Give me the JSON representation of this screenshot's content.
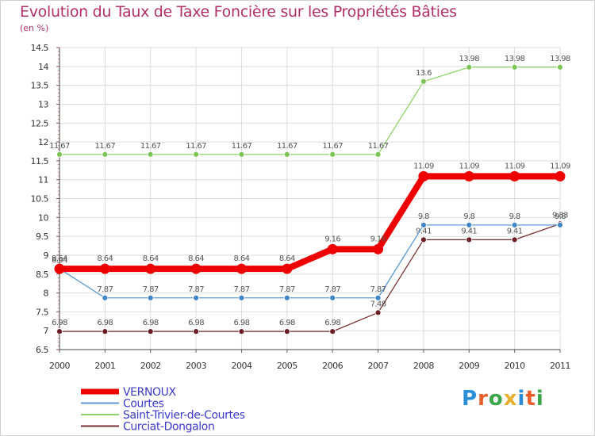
{
  "logo": {
    "text": "Proxiti",
    "colors": [
      "#2a8fd6",
      "#e85d2a",
      "#3aa648",
      "#e8b02a",
      "#2a8fd6",
      "#e85d2a",
      "#3aa648"
    ]
  },
  "chart_data": {
    "type": "line",
    "title": "Evolution du Taux de Taxe Foncière sur les Propriétés Bâties",
    "subtitle": "(en %)",
    "xlabel": "",
    "ylabel": "",
    "ylim": [
      6.5,
      14.5
    ],
    "yticks": [
      "6.5",
      "7",
      "7.5",
      "8",
      "8.5",
      "9",
      "9.5",
      "10",
      "10.5",
      "11",
      "11.5",
      "12",
      "12.5",
      "13",
      "13.5",
      "14",
      "14.5"
    ],
    "categories": [
      "2000",
      "2001",
      "2002",
      "2003",
      "2004",
      "2005",
      "2006",
      "2007",
      "2008",
      "2009",
      "2010",
      "2011"
    ],
    "grid": true,
    "legend_position": "bottom-left",
    "series": [
      {
        "name": "Saint-Trivier-de-Courtes",
        "color": "#8fd46a",
        "marker": "#7cc456",
        "values": [
          11.67,
          11.67,
          11.67,
          11.67,
          11.67,
          11.67,
          11.67,
          11.67,
          13.6,
          13.98,
          13.98,
          13.98
        ],
        "labels": [
          "11.67",
          "11.67",
          "11.67",
          "11.67",
          "11.67",
          "11.67",
          "11.67",
          "11.67",
          "13.6",
          "13.98",
          "13.98",
          "13.98"
        ]
      },
      {
        "name": "Curciat-Dongalon",
        "color": "#7a2f2f",
        "marker": "#6b1f25",
        "values": [
          6.98,
          6.98,
          6.98,
          6.98,
          6.98,
          6.98,
          6.98,
          7.48,
          9.41,
          9.41,
          9.41,
          9.83
        ],
        "labels": [
          "6.98",
          "6.98",
          "6.98",
          "6.98",
          "6.98",
          "6.98",
          "6.98",
          "7.48",
          "9.41",
          "9.41",
          "9.41",
          "9.83"
        ]
      },
      {
        "name": "Courtes",
        "color": "#5a9ad4",
        "marker": "#3f86c6",
        "values": [
          8.64,
          7.87,
          7.87,
          7.87,
          7.87,
          7.87,
          7.87,
          7.87,
          9.8,
          9.8,
          9.8,
          9.8
        ],
        "labels": [
          "8.64",
          "7.87",
          "7.87",
          "7.87",
          "7.87",
          "7.87",
          "7.87",
          "7.87",
          "9.8",
          "9.8",
          "9.8",
          "9.8"
        ]
      },
      {
        "name": "VERNOUX",
        "color": "#ee0000",
        "marker": "#ee0000",
        "values": [
          8.64,
          8.64,
          8.64,
          8.64,
          8.64,
          8.64,
          9.16,
          9.16,
          11.09,
          11.09,
          11.09,
          11.09
        ],
        "labels": [
          "8.64",
          "8.64",
          "8.64",
          "8.64",
          "8.64",
          "8.64",
          "9.16",
          "9.16",
          "11.09",
          "11.09",
          "11.09",
          "11.09"
        ]
      }
    ],
    "legend": [
      "VERNOUX",
      "Courtes",
      "Saint-Trivier-de-Courtes",
      "Curciat-Dongalon"
    ]
  }
}
